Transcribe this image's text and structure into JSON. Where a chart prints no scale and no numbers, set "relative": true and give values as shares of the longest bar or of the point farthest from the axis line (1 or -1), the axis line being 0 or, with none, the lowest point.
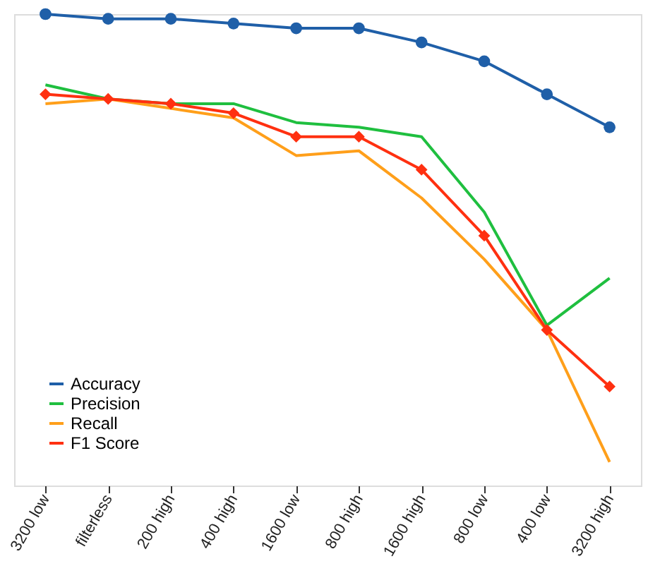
{
  "chart_data": {
    "type": "line",
    "relative": true,
    "categories": [
      "3200 low",
      "filterless",
      "200 high",
      "400 high",
      "1600 low",
      "800 high",
      "1600 high",
      "800 low",
      "400 low",
      "3200 high"
    ],
    "series": [
      {
        "name": "Accuracy",
        "color": "#1f5fa8",
        "marker": "circle",
        "values": [
          1.0,
          0.99,
          0.99,
          0.98,
          0.97,
          0.97,
          0.94,
          0.9,
          0.83,
          0.76
        ]
      },
      {
        "name": "Precision",
        "color": "#1fbf3f",
        "marker": "none",
        "values": [
          0.85,
          0.82,
          0.81,
          0.81,
          0.77,
          0.76,
          0.74,
          0.58,
          0.34,
          0.44
        ]
      },
      {
        "name": "Recall",
        "color": "#ff9f1a",
        "marker": "none",
        "values": [
          0.81,
          0.82,
          0.8,
          0.78,
          0.7,
          0.71,
          0.61,
          0.48,
          0.33,
          0.05
        ]
      },
      {
        "name": "F1 Score",
        "color": "#ff3010",
        "marker": "diamond",
        "values": [
          0.83,
          0.82,
          0.81,
          0.79,
          0.74,
          0.74,
          0.67,
          0.53,
          0.33,
          0.21
        ]
      }
    ],
    "legend": "bottom left",
    "grid": false
  }
}
